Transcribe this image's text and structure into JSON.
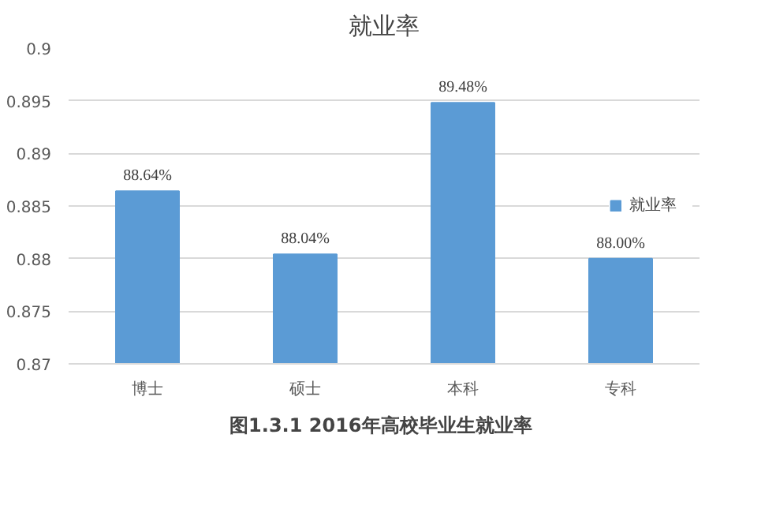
{
  "chart_data": {
    "type": "bar",
    "title": "就业率",
    "categories": [
      "博士",
      "硕士",
      "本科",
      "专科"
    ],
    "series": [
      {
        "name": "就业率",
        "color": "#5b9bd5",
        "values": [
          0.8864,
          0.8804,
          0.8948,
          0.88
        ],
        "value_labels": [
          "88.64%",
          "88.04%",
          "89.48%",
          "88.00%"
        ]
      }
    ],
    "ylim": [
      0.87,
      0.9
    ],
    "yticks": [
      0.87,
      0.875,
      0.88,
      0.885,
      0.89,
      0.895,
      0.9
    ],
    "grid": "y",
    "legend": "right",
    "annotations": [
      "图1.3.1  2016年高校毕业生就业率"
    ]
  }
}
